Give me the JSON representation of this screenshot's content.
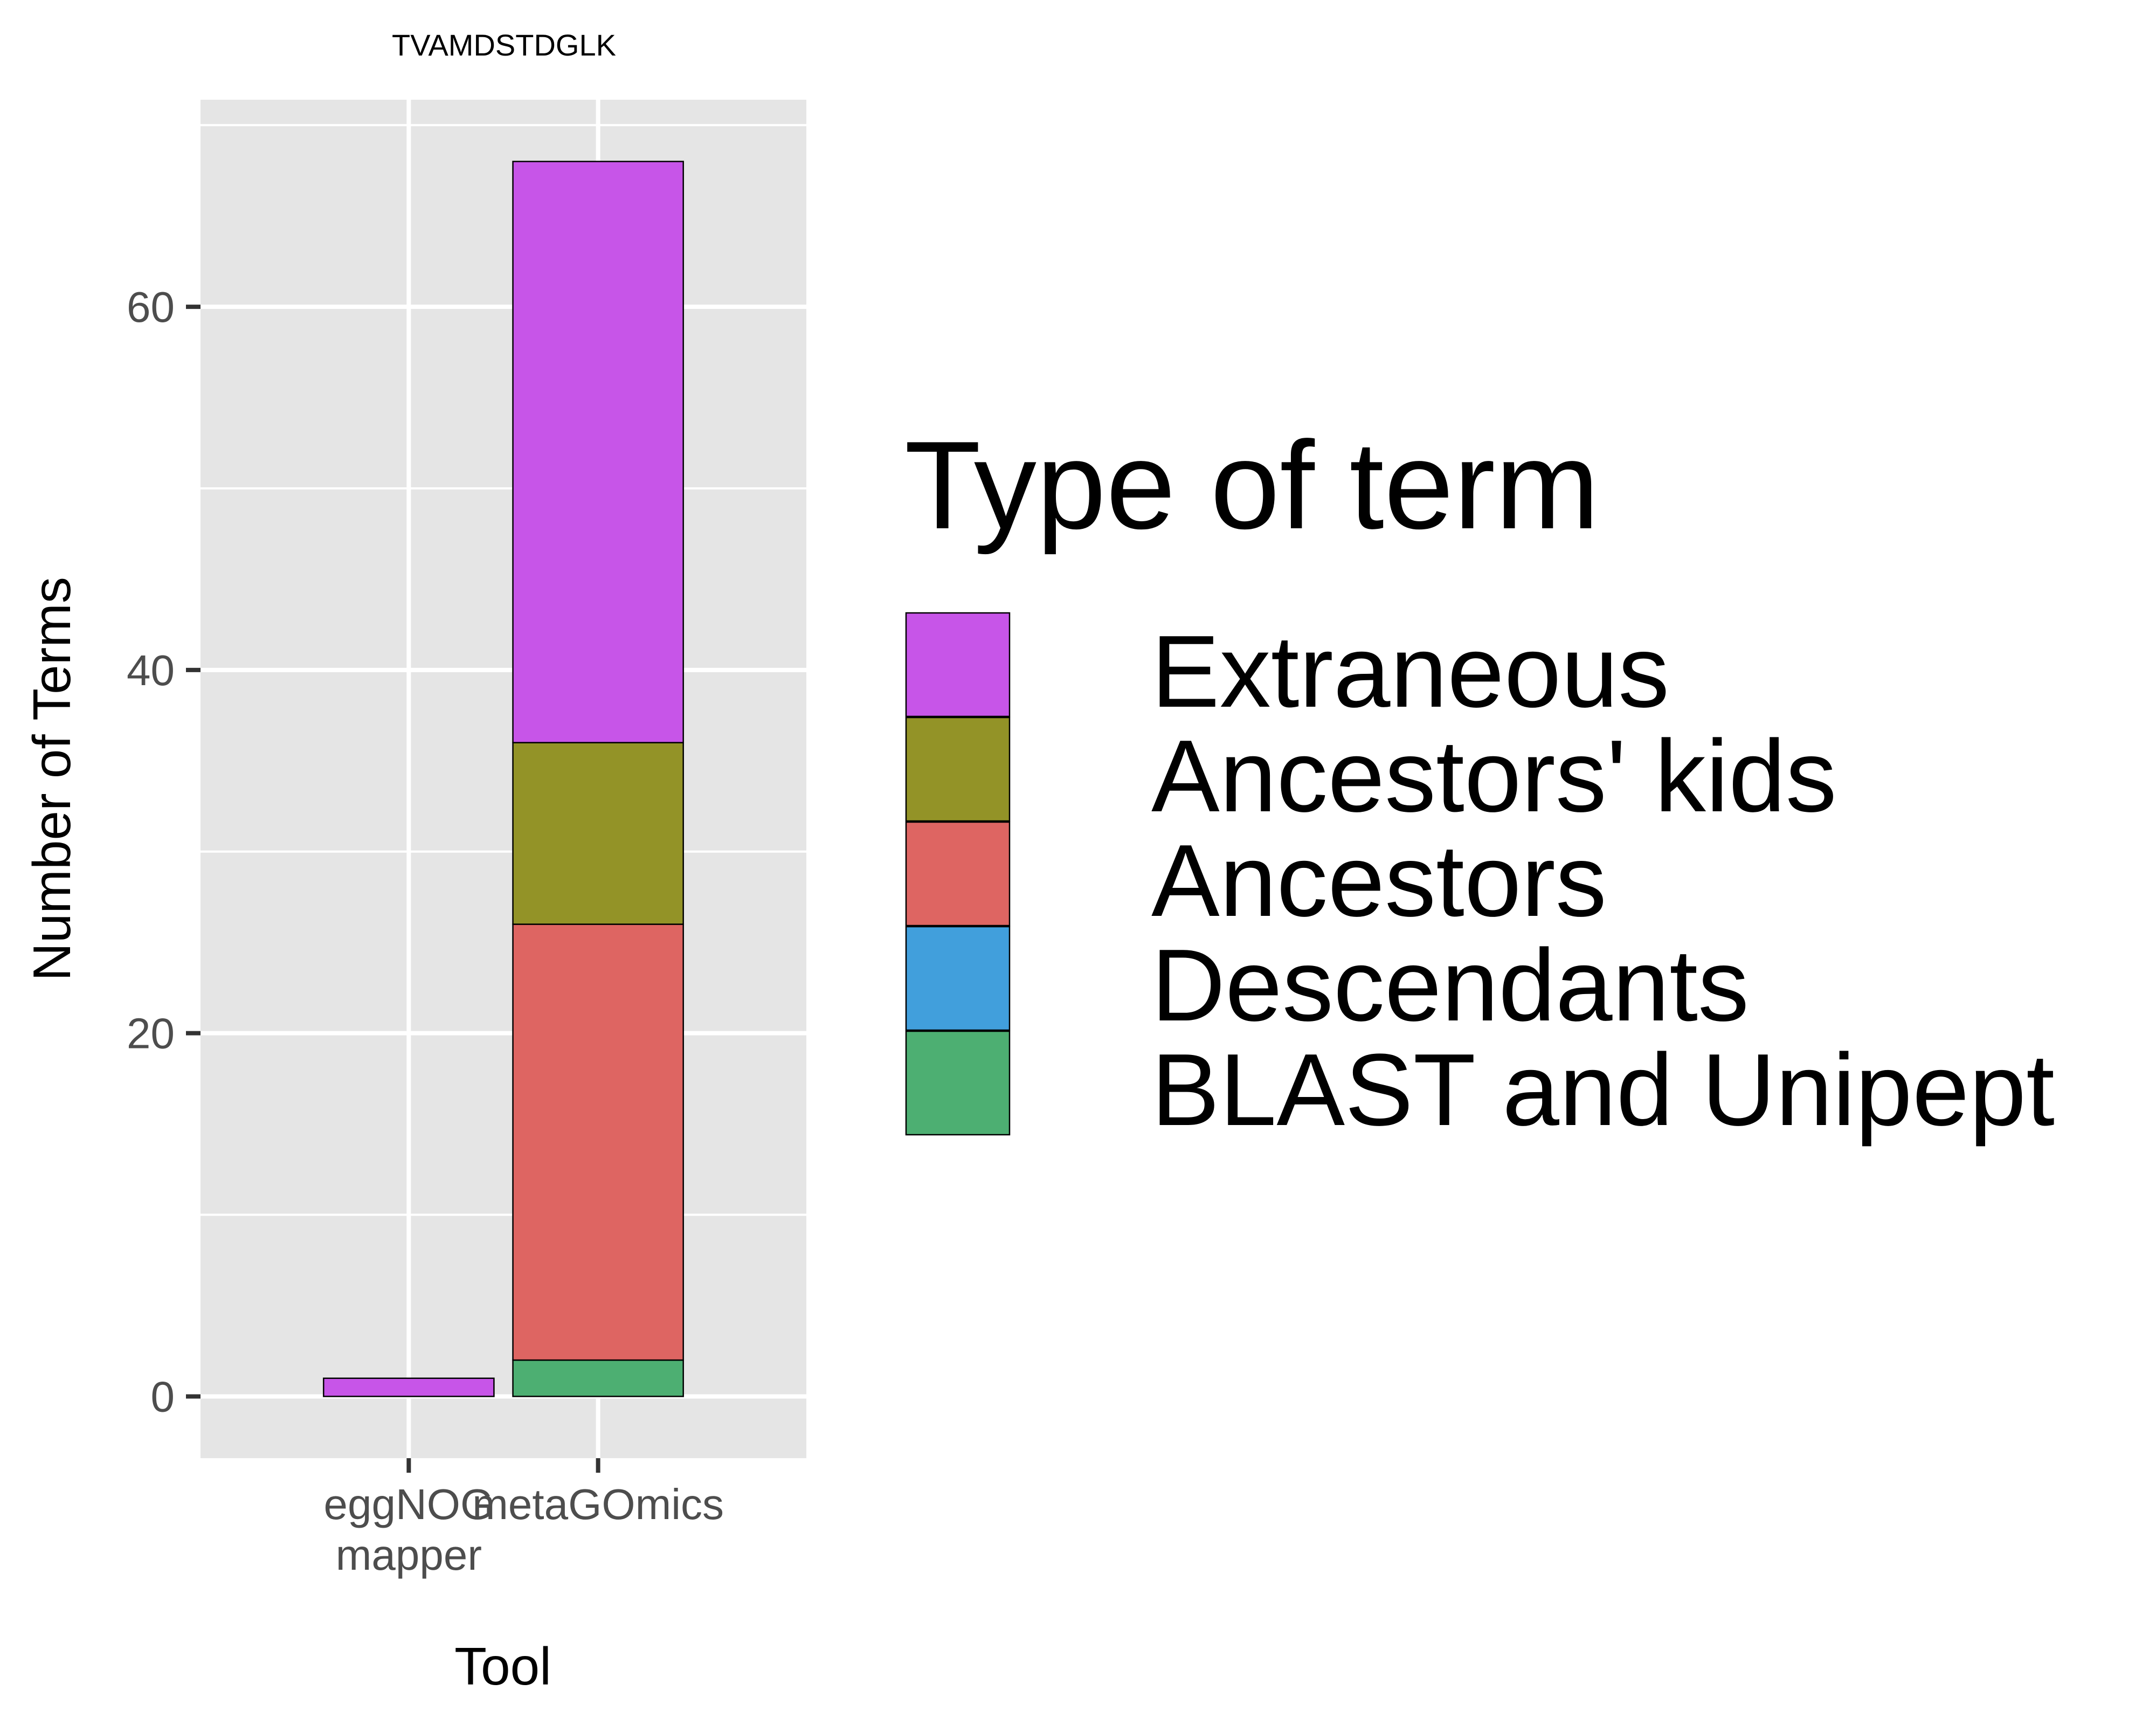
{
  "chart_data": {
    "type": "bar",
    "stacked": true,
    "title": "TVAMDSTDGLK",
    "xlabel": "Tool",
    "ylabel": "Number of Terms",
    "categories": [
      "eggNOG\nmapper",
      "metaGOmics"
    ],
    "ylim": [
      -3.4,
      71.4
    ],
    "yticks": [
      0,
      20,
      40,
      60
    ],
    "grid": true,
    "legend": {
      "title": "Type of term",
      "position": "right",
      "entries": [
        "Extraneous",
        "Ancestors' kids",
        "Ancestors",
        "Descendants",
        "BLAST and Unipept"
      ]
    },
    "series": [
      {
        "name": "BLAST and Unipept",
        "color": "#4daf72",
        "values": [
          0,
          2
        ]
      },
      {
        "name": "Descendants",
        "color": "#419fdc",
        "values": [
          0,
          0
        ]
      },
      {
        "name": "Ancestors",
        "color": "#de6562",
        "values": [
          0,
          24
        ]
      },
      {
        "name": "Ancestors' kids",
        "color": "#939327",
        "values": [
          0,
          10
        ]
      },
      {
        "name": "Extraneous",
        "color": "#c755e8",
        "values": [
          1,
          32
        ]
      }
    ]
  }
}
